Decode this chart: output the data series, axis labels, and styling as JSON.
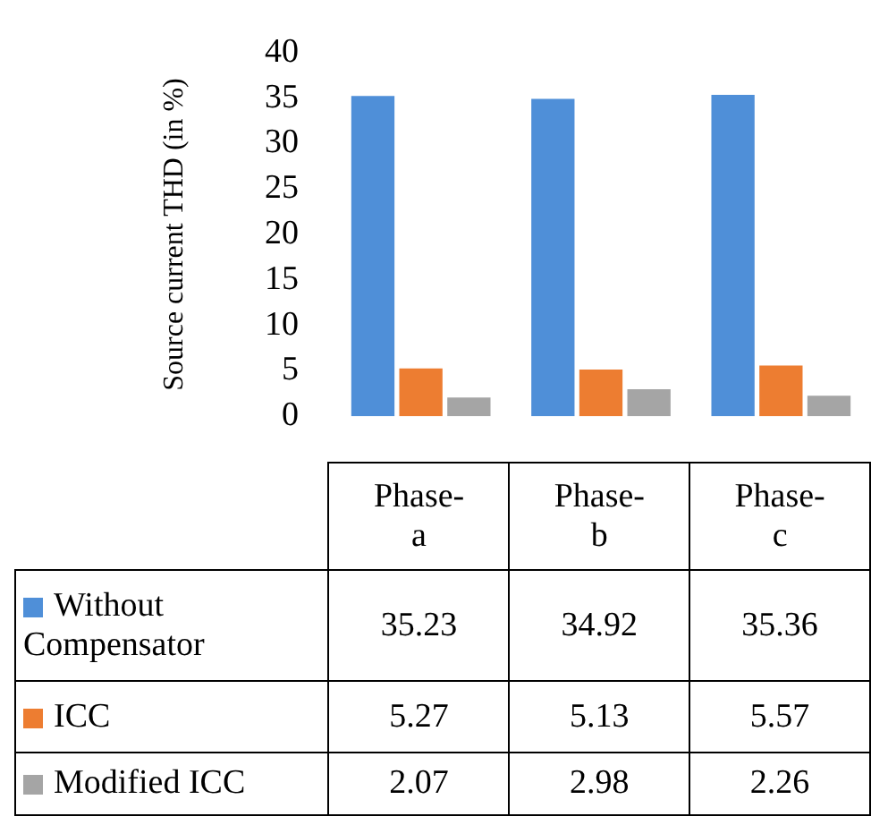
{
  "chart_data": {
    "type": "bar",
    "ylabel": "Source current THD (in %)",
    "categories": [
      "Phase-a",
      "Phase-b",
      "Phase-c"
    ],
    "series": [
      {
        "name": "Without Compensator",
        "color": "#4f8fd8",
        "values": [
          35.23,
          34.92,
          35.36
        ]
      },
      {
        "name": "ICC",
        "color": "#ed7d31",
        "values": [
          5.27,
          5.13,
          5.57
        ]
      },
      {
        "name": "Modified ICC",
        "color": "#a5a5a5",
        "values": [
          2.07,
          2.98,
          2.26
        ]
      }
    ],
    "ylim": [
      0,
      40
    ],
    "yticks": [
      0,
      5,
      10,
      15,
      20,
      25,
      30,
      35,
      40
    ],
    "grid": false,
    "legend": "bottom",
    "data_labels": true
  }
}
